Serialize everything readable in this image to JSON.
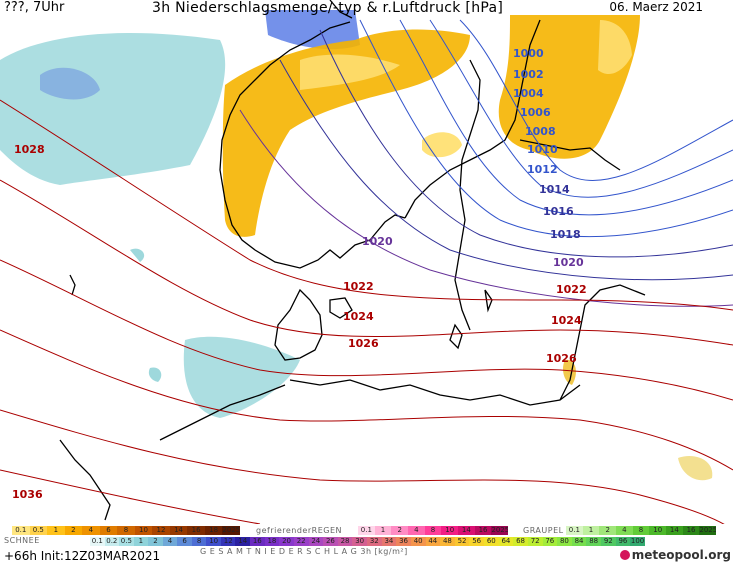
{
  "header": {
    "left": "???, 7Uhr",
    "title": "3h Niederschlagsmenge/-typ & r.Luftdruck [hPa]",
    "date": "06. Maerz 2021"
  },
  "pressure_labels": [
    {
      "text": "1000",
      "color": "#3355cc"
    },
    {
      "text": "1002",
      "color": "#3355cc"
    },
    {
      "text": "1004",
      "color": "#3355cc"
    },
    {
      "text": "1006",
      "color": "#3355cc"
    },
    {
      "text": "1008",
      "color": "#3355cc"
    },
    {
      "text": "1010",
      "color": "#3355cc"
    },
    {
      "text": "1012",
      "color": "#3355cc"
    },
    {
      "text": "1014",
      "color": "#333399"
    },
    {
      "text": "1016",
      "color": "#333399"
    },
    {
      "text": "1018",
      "color": "#333399"
    },
    {
      "text": "1020",
      "color": "#663399"
    },
    {
      "text": "1020",
      "color": "#663399"
    },
    {
      "text": "1022",
      "color": "#aa0000"
    },
    {
      "text": "1022",
      "color": "#aa0000"
    },
    {
      "text": "1024",
      "color": "#aa0000"
    },
    {
      "text": "1024",
      "color": "#aa0000"
    },
    {
      "text": "1026",
      "color": "#aa0000"
    },
    {
      "text": "1026",
      "color": "#aa0000"
    },
    {
      "text": "1028",
      "color": "#aa0000"
    },
    {
      "text": "1036",
      "color": "#aa0000"
    }
  ],
  "legend": {
    "rain_values": [
      "0.1",
      "0.5",
      "1",
      "2",
      "4",
      "6",
      "8",
      "10",
      "12",
      "14",
      "16",
      "18",
      "2025+"
    ],
    "rain_colors": [
      "#ffe680",
      "#ffd24d",
      "#ffc21a",
      "#f7a800",
      "#ee9200",
      "#e07c00",
      "#d06800",
      "#c05400",
      "#aa4400",
      "#963800",
      "#802c00",
      "#6c2200",
      "#561800"
    ],
    "freezing_label": "gefrierenderREGEN",
    "freezing_values": [
      "0.1",
      "1",
      "2",
      "4",
      "8",
      "10",
      "14",
      "16",
      "2025+"
    ],
    "freezing_colors": [
      "#ffd6ea",
      "#ffb3d6",
      "#ff8cc4",
      "#ff66b0",
      "#ff3d99",
      "#f21e85",
      "#d90f72",
      "#bb0960",
      "#990550"
    ],
    "graupel_label": "GRAUPEL",
    "graupel_values": [
      "0.1",
      "1",
      "2",
      "4",
      "8",
      "10",
      "14",
      "16",
      "2025+"
    ],
    "graupel_colors": [
      "#d8f5c4",
      "#bff0a0",
      "#a0e67a",
      "#80dc55",
      "#62cc38",
      "#4cb82a",
      "#3aa01e",
      "#2c8818",
      "#206e10"
    ],
    "snow_label": "SCHNEE",
    "snow_values": [
      "0.1",
      "0.2",
      "0.5",
      "1",
      "2",
      "4",
      "6",
      "8",
      "10",
      "12",
      "14"
    ],
    "snow_colors": [
      "#e6f7f7",
      "#c7ecee",
      "#a8e0e4",
      "#8fd3da",
      "#80c4d8",
      "#6fa8d8",
      "#5d8ad8",
      "#4d6ed4",
      "#4050cc",
      "#3434b8",
      "#2a20a0"
    ],
    "total_label": "G E S A M T N I E D E R S C H L A G   3h   [kg/m²]",
    "total_values": [
      "16",
      "18",
      "20",
      "22",
      "24",
      "26",
      "28",
      "30",
      "32",
      "34",
      "36",
      "40",
      "44",
      "48",
      "52",
      "56",
      "60",
      "64",
      "68",
      "72",
      "76",
      "80",
      "84",
      "88",
      "92",
      "96",
      "100"
    ],
    "total_colors": [
      "#6a2ac0",
      "#7a30c8",
      "#8a38cc",
      "#9a40c8",
      "#aa48c0",
      "#ba50b4",
      "#c858a4",
      "#d46092",
      "#de6a80",
      "#e6766e",
      "#ee845c",
      "#f4944c",
      "#f8a640",
      "#fab636",
      "#fac630",
      "#f8d42c",
      "#f2e02a",
      "#e6e82a",
      "#d4ec2c",
      "#bcee32",
      "#a4ec3a",
      "#8ce644",
      "#76de4e",
      "#62d458",
      "#50c862",
      "#40ba6a",
      "#32aa70"
    ]
  },
  "run_info": "+66h  Init:12Z03MAR2021",
  "brand": "meteopool.org"
}
